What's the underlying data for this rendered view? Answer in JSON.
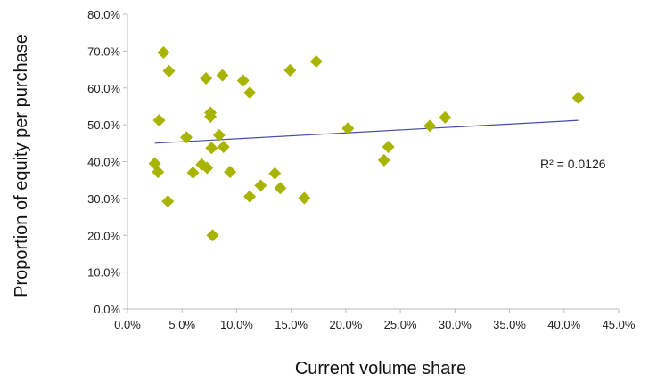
{
  "chart_data": {
    "type": "scatter",
    "xlabel": "Current volume share",
    "ylabel": "Proportion of equity per purchase",
    "xlim": [
      0,
      45
    ],
    "ylim": [
      0,
      80
    ],
    "x_ticks": [
      "0.0%",
      "5.0%",
      "10.0%",
      "15.0%",
      "20.0%",
      "25.0%",
      "30.0%",
      "35.0%",
      "40.0%",
      "45.0%"
    ],
    "y_ticks": [
      "0.0%",
      "10.0%",
      "20.0%",
      "30.0%",
      "40.0%",
      "50.0%",
      "60.0%",
      "70.0%",
      "80.0%"
    ],
    "grid": false,
    "marker": "diamond",
    "colors": {
      "points": "#a8b400",
      "trendline": "#4a4aa8",
      "axis": "#bbbbbb"
    },
    "points": [
      {
        "x": 2.5,
        "y": 39.5
      },
      {
        "x": 2.8,
        "y": 37.2
      },
      {
        "x": 2.9,
        "y": 51.2
      },
      {
        "x": 3.3,
        "y": 69.6
      },
      {
        "x": 3.7,
        "y": 29.2
      },
      {
        "x": 3.8,
        "y": 64.6
      },
      {
        "x": 5.4,
        "y": 46.6
      },
      {
        "x": 6.0,
        "y": 37.0
      },
      {
        "x": 6.8,
        "y": 39.2
      },
      {
        "x": 7.2,
        "y": 62.6
      },
      {
        "x": 7.3,
        "y": 38.3
      },
      {
        "x": 7.6,
        "y": 53.3
      },
      {
        "x": 7.6,
        "y": 52.2
      },
      {
        "x": 7.7,
        "y": 43.7
      },
      {
        "x": 7.8,
        "y": 20.0
      },
      {
        "x": 8.4,
        "y": 47.2
      },
      {
        "x": 8.7,
        "y": 63.4
      },
      {
        "x": 8.8,
        "y": 44.0
      },
      {
        "x": 9.4,
        "y": 37.2
      },
      {
        "x": 10.6,
        "y": 62.0
      },
      {
        "x": 11.2,
        "y": 30.5
      },
      {
        "x": 11.2,
        "y": 58.7
      },
      {
        "x": 12.2,
        "y": 33.5
      },
      {
        "x": 13.5,
        "y": 36.8
      },
      {
        "x": 14.0,
        "y": 32.8
      },
      {
        "x": 14.9,
        "y": 64.8
      },
      {
        "x": 16.2,
        "y": 30.1
      },
      {
        "x": 17.3,
        "y": 67.2
      },
      {
        "x": 20.2,
        "y": 49.0
      },
      {
        "x": 23.5,
        "y": 40.4
      },
      {
        "x": 23.9,
        "y": 44.0
      },
      {
        "x": 27.7,
        "y": 49.7
      },
      {
        "x": 29.1,
        "y": 52.0
      },
      {
        "x": 41.3,
        "y": 57.3
      }
    ],
    "trendline": {
      "x": [
        2.5,
        41.3
      ],
      "y": [
        45.0,
        51.2
      ]
    },
    "annotations": [
      {
        "text": "R² = 0.0126"
      }
    ]
  }
}
